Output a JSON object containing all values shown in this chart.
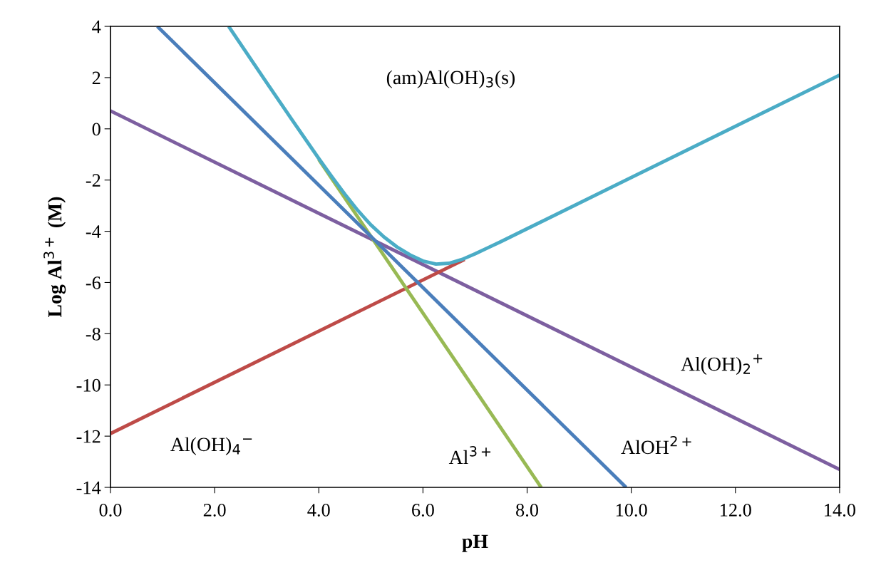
{
  "chart_data": {
    "type": "line",
    "xlabel": "pH",
    "ylabel": "Log Al$^{3+}$ (M)",
    "xlim": [
      0,
      14
    ],
    "ylim": [
      -14,
      4
    ],
    "xticks": [
      {
        "value": 0,
        "label": "0.0"
      },
      {
        "value": 2,
        "label": "2.0"
      },
      {
        "value": 4,
        "label": "4.0"
      },
      {
        "value": 6,
        "label": "6.0"
      },
      {
        "value": 8,
        "label": "8.0"
      },
      {
        "value": 10,
        "label": "10.0"
      },
      {
        "value": 12,
        "label": "12.0"
      },
      {
        "value": 14,
        "label": "14.0"
      }
    ],
    "yticks": [
      -14,
      -12,
      -10,
      -8,
      -6,
      -4,
      -2,
      0,
      2,
      4
    ],
    "grid": false,
    "legend": false,
    "marker": "none",
    "line_style": "solid",
    "series": [
      {
        "color": "#7d5fa0",
        "x": [
          0,
          14
        ],
        "values": [
          0.7,
          -13.3
        ]
      },
      {
        "color": "#be4b48",
        "x": [
          0,
          6.8
        ],
        "values": [
          -11.9,
          -5.1
        ]
      },
      {
        "color": "#98b954",
        "x": [
          4,
          8.27
        ],
        "values": [
          -1.2,
          -14
        ]
      },
      {
        "color": "#4a7ebb",
        "x": [
          0.9,
          9.9
        ],
        "values": [
          4,
          -14
        ]
      },
      {
        "color": "#4bacc6",
        "x": [
          2.27,
          3,
          3.5,
          4,
          4.25,
          4.5,
          4.75,
          5,
          5.25,
          5.5,
          5.75,
          6,
          6.25,
          6.5,
          6.75,
          7,
          7.25,
          7.5,
          8,
          14
        ],
        "values": [
          4,
          1.8,
          0.31,
          -1.16,
          -1.87,
          -2.55,
          -3.19,
          -3.75,
          -4.22,
          -4.61,
          -4.92,
          -5.16,
          -5.28,
          -5.25,
          -5.1,
          -4.88,
          -4.64,
          -4.4,
          -3.9,
          2.1
        ]
      }
    ],
    "annotations": [
      "(am)Al(OH)$_{3}$(s)",
      "Al(OH)$_{2}$$^{+}$",
      "Al(OH)$_{4}$$^{−}$",
      "Al$^{3+}$",
      "AlOH$^{2+}$"
    ]
  }
}
